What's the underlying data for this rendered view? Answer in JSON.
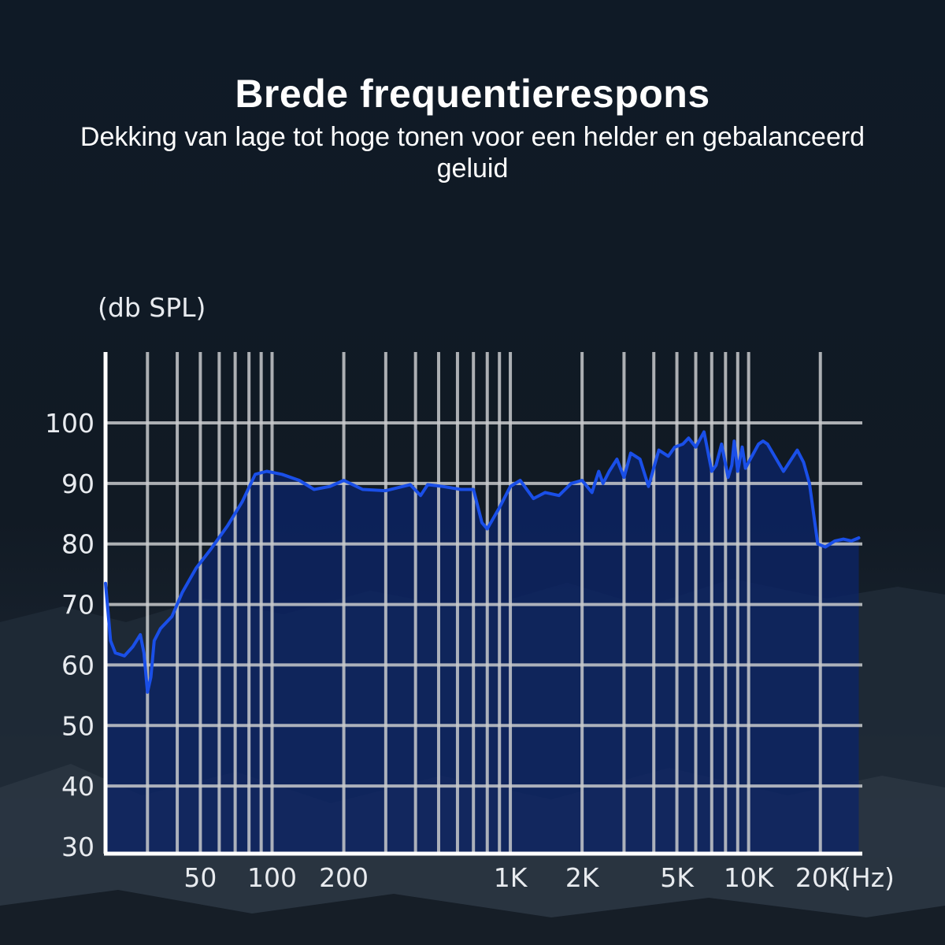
{
  "page": {
    "title": "Brede frequentierespons",
    "subtitle": "Dekking van lage tot hoge tonen voor een helder en gebalanceerd geluid"
  },
  "colors": {
    "line": "#1a4fe8",
    "fill": "#0c2466",
    "grid": "#c8cacc",
    "text": "#ffffff"
  },
  "chart_data": {
    "type": "area",
    "title": "",
    "xlabel": "(Hz)",
    "ylabel": "(db SPL)",
    "x_scale": "log",
    "xlim": [
      20,
      30000
    ],
    "ylim": [
      30,
      100
    ],
    "grid": true,
    "y_ticks": [
      30,
      40,
      50,
      60,
      70,
      80,
      90,
      100
    ],
    "x_ticks": [
      {
        "value": 50,
        "label": "50"
      },
      {
        "value": 100,
        "label": "100"
      },
      {
        "value": 200,
        "label": "200"
      },
      {
        "value": 1000,
        "label": "1K"
      },
      {
        "value": 2000,
        "label": "2K"
      },
      {
        "value": 5000,
        "label": "5K"
      },
      {
        "value": 10000,
        "label": "10K"
      },
      {
        "value": 20000,
        "label": "20K"
      }
    ],
    "series": [
      {
        "x": [
          20,
          21,
          22,
          24,
          26,
          28,
          29,
          30,
          31,
          32,
          34,
          38,
          42,
          48,
          55,
          65,
          75,
          85,
          95,
          110,
          130,
          150,
          175,
          200,
          240,
          300,
          380,
          420,
          450,
          520,
          620,
          700,
          760,
          800,
          900,
          1000,
          1100,
          1250,
          1400,
          1600,
          1800,
          2000,
          2200,
          2350,
          2450,
          2600,
          2800,
          3000,
          3200,
          3500,
          3800,
          4200,
          4600,
          4900,
          5300,
          5600,
          6000,
          6500,
          7000,
          7300,
          7700,
          8200,
          8500,
          8700,
          9000,
          9400,
          9700,
          10000,
          10500,
          11000,
          11500,
          12000,
          14000,
          16000,
          17000,
          18000,
          19500,
          21000,
          23000,
          25000,
          27000,
          29000
        ],
        "y": [
          73.5,
          64,
          62,
          61.5,
          63,
          65,
          62,
          55.5,
          58,
          64,
          66,
          68,
          72,
          76,
          79,
          83,
          87,
          91.5,
          92,
          91.5,
          90.5,
          89,
          89.5,
          90.5,
          89,
          88.8,
          89.8,
          88,
          89.8,
          89.5,
          89,
          89,
          83.5,
          82.5,
          86,
          89.5,
          90.5,
          87.5,
          88.5,
          88,
          90,
          90.5,
          88.5,
          92,
          90,
          92,
          94,
          91,
          95,
          94,
          89.5,
          95.5,
          94.5,
          96,
          96.5,
          97.5,
          96,
          98.5,
          92,
          93,
          96.5,
          91,
          93,
          97,
          92,
          96,
          92.5,
          93.5,
          95,
          96.5,
          97,
          96.5,
          92,
          95.5,
          93.5,
          90,
          80,
          79.5,
          80.5,
          80.8,
          80.5,
          81
        ]
      }
    ]
  }
}
